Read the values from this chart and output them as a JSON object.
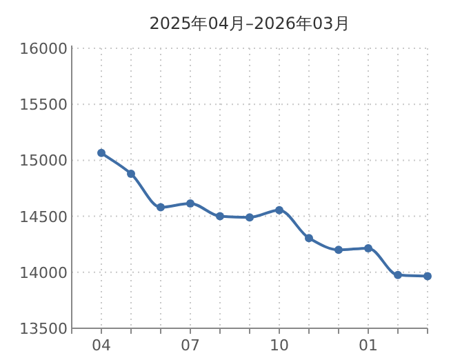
{
  "chart_data": {
    "type": "line",
    "title": "2025年04月–2026年03月",
    "categories": [
      "04",
      null,
      null,
      "07",
      null,
      null,
      "10",
      null,
      null,
      "01",
      null,
      null
    ],
    "series": [
      {
        "color": "#3f6ea6",
        "values": [
          15065,
          14880,
          14580,
          14615,
          14500,
          14490,
          14555,
          14305,
          14200,
          14215,
          13975,
          13965
        ]
      }
    ],
    "ylim": [
      13500,
      16000
    ],
    "yticks": [
      13500,
      14000,
      14500,
      15000,
      15500,
      16000
    ],
    "grid": true,
    "marker": "circle",
    "line_style": "solid"
  }
}
